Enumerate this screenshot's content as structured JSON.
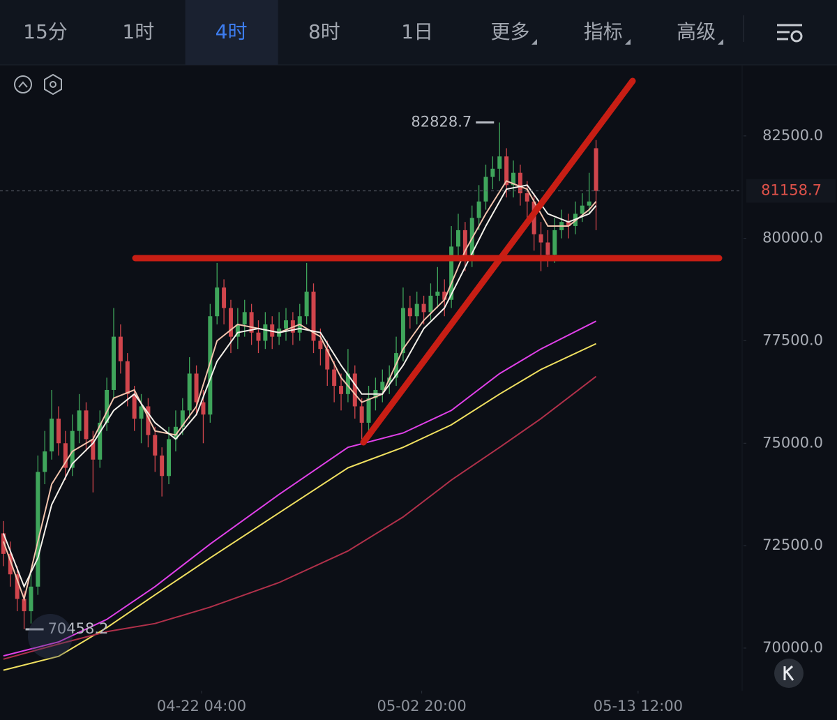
{
  "tabs": [
    "15分",
    "1时",
    "4时",
    "8时",
    "1日",
    "更多",
    "指标",
    "高级"
  ],
  "active_tab": 2,
  "chart_data": {
    "type": "candlestick",
    "open": [
      72800,
      72300,
      71800,
      71200,
      70900,
      71500,
      74300,
      74800,
      75600,
      75000,
      74400,
      75300,
      75800,
      75100,
      74600,
      75500,
      76300,
      77600,
      77000,
      76200,
      75600,
      75900,
      75200,
      74700,
      74200,
      75100,
      75400,
      75800,
      76700,
      76000,
      75700,
      78100,
      78800,
      78300,
      77600,
      77900,
      78200,
      77700,
      77500,
      77900,
      77600,
      77800,
      78000,
      77700,
      78100,
      78700,
      77500,
      77300,
      76800,
      76400,
      76200,
      76700,
      75900,
      75500,
      76100,
      76300,
      76500,
      76600,
      77200,
      78300,
      78100,
      78400,
      78200,
      78600,
      78700,
      78500,
      79800,
      80200,
      79500,
      80500,
      80900,
      81500,
      81700,
      82000,
      81300,
      81600,
      81100,
      80900,
      80100,
      79900,
      79600,
      80200,
      80400,
      80300,
      80600,
      80800,
      82200
    ],
    "high": [
      73100,
      72600,
      72000,
      71400,
      71800,
      74700,
      75300,
      76300,
      75900,
      75300,
      75700,
      76200,
      76000,
      75300,
      75800,
      76600,
      78300,
      77900,
      77200,
      76400,
      76200,
      76100,
      75400,
      74900,
      75400,
      75800,
      76100,
      77100,
      76900,
      76300,
      78400,
      79400,
      79000,
      78500,
      78300,
      78500,
      78400,
      78000,
      78200,
      78100,
      78200,
      78300,
      78200,
      78400,
      79400,
      78900,
      77800,
      77500,
      77000,
      76700,
      77300,
      76900,
      76100,
      76400,
      76600,
      76800,
      76900,
      77600,
      78800,
      78600,
      78700,
      78600,
      78900,
      79300,
      79000,
      80300,
      80600,
      80400,
      80800,
      81300,
      81800,
      82000,
      82828.7,
      82200,
      81900,
      81800,
      81400,
      81100,
      80400,
      80200,
      80500,
      80700,
      80600,
      80900,
      81100,
      81600,
      82400
    ],
    "low": [
      72000,
      71500,
      70900,
      70458.2,
      70600,
      71300,
      74000,
      74600,
      74700,
      74100,
      74200,
      75000,
      74800,
      73800,
      74400,
      75300,
      76100,
      76700,
      75900,
      75300,
      75000,
      74900,
      74300,
      73700,
      74000,
      74800,
      75200,
      75600,
      75700,
      75000,
      75500,
      77900,
      77900,
      77200,
      77300,
      77600,
      77400,
      77200,
      77300,
      77300,
      77400,
      77500,
      77400,
      77500,
      77900,
      77200,
      76900,
      76400,
      76000,
      75800,
      76000,
      75600,
      75100,
      75300,
      75800,
      76000,
      76200,
      76400,
      77000,
      77800,
      77900,
      77900,
      78000,
      78300,
      78100,
      78300,
      79500,
      79200,
      79300,
      80200,
      80700,
      81200,
      81400,
      81000,
      81000,
      80800,
      80500,
      79700,
      79200,
      79300,
      79400,
      80000,
      80000,
      80100,
      80400,
      80600,
      80200
    ],
    "close": [
      72300,
      71800,
      71200,
      70900,
      71500,
      74300,
      74800,
      75600,
      75000,
      74400,
      75300,
      75800,
      75100,
      74600,
      75500,
      76300,
      77600,
      77000,
      76200,
      75600,
      75900,
      75200,
      74700,
      74200,
      75100,
      75400,
      75800,
      76700,
      76000,
      75700,
      78100,
      78800,
      78300,
      77600,
      77900,
      78200,
      77700,
      77500,
      77900,
      77600,
      77800,
      78000,
      77700,
      78100,
      78700,
      77500,
      77300,
      76800,
      76400,
      76200,
      76700,
      75900,
      75500,
      76100,
      76300,
      76500,
      76600,
      77200,
      78300,
      78100,
      78400,
      78200,
      78600,
      78700,
      78500,
      79800,
      80200,
      79500,
      80500,
      80900,
      81500,
      81700,
      82000,
      81300,
      81600,
      81100,
      80900,
      80100,
      79900,
      79600,
      80200,
      80400,
      80300,
      80600,
      80800,
      80900,
      81158.7
    ],
    "up_color": "#3fa55b",
    "down_color": "#d0454c",
    "ma": [
      {
        "color": "#f2c4ad",
        "x": [
          0,
          3,
          5,
          7,
          10,
          13,
          16,
          19,
          22,
          25,
          28,
          31,
          34,
          37,
          40,
          43,
          46,
          49,
          52,
          55,
          58,
          61,
          64,
          67,
          70,
          73,
          76,
          79,
          82,
          85,
          86
        ],
        "values": [
          72600,
          71200,
          72600,
          74000,
          74800,
          75100,
          76100,
          76300,
          75300,
          75200,
          75900,
          77500,
          77900,
          77800,
          77700,
          77900,
          77600,
          76600,
          76000,
          76200,
          77300,
          78000,
          78500,
          79700,
          80600,
          81400,
          81200,
          80300,
          80300,
          80700,
          80900
        ]
      },
      {
        "color": "#f4f1ea",
        "x": [
          0,
          3,
          5,
          7,
          10,
          13,
          16,
          19,
          22,
          25,
          28,
          31,
          34,
          37,
          40,
          43,
          46,
          49,
          52,
          55,
          58,
          61,
          64,
          67,
          70,
          73,
          76,
          79,
          82,
          85,
          86
        ],
        "values": [
          72800,
          71500,
          72200,
          73500,
          74500,
          75000,
          75800,
          76200,
          75500,
          75100,
          75700,
          77000,
          77700,
          77800,
          77700,
          77800,
          77700,
          76900,
          76200,
          76200,
          76900,
          77800,
          78300,
          79300,
          80300,
          81200,
          81300,
          80600,
          80400,
          80600,
          80800
        ]
      },
      {
        "color": "#e040e8",
        "x": [
          0,
          8,
          15,
          22,
          30,
          40,
          50,
          58,
          65,
          72,
          78,
          86
        ],
        "values": [
          69810,
          70150,
          70700,
          71500,
          72540,
          73750,
          74900,
          75250,
          75800,
          76700,
          77300,
          77980
        ]
      },
      {
        "color": "#f0e060",
        "x": [
          0,
          8,
          15,
          22,
          30,
          40,
          50,
          58,
          65,
          72,
          78,
          86
        ],
        "values": [
          69460,
          69800,
          70500,
          71300,
          72200,
          73300,
          74400,
          74900,
          75450,
          76200,
          76800,
          77430
        ]
      },
      {
        "color": "#b0304a",
        "x": [
          0,
          8,
          15,
          22,
          30,
          40,
          50,
          58,
          65,
          72,
          78,
          86
        ],
        "values": [
          69730,
          70100,
          70400,
          70600,
          71000,
          71600,
          72370,
          73200,
          74100,
          74900,
          75600,
          76630
        ]
      }
    ],
    "ylim": [
      68960,
      84200
    ],
    "yticks": [
      {
        "value": 70000,
        "label": "70000.0"
      },
      {
        "value": 72500,
        "label": "72500.0"
      },
      {
        "value": 75000,
        "label": "75000.0"
      },
      {
        "value": 77500,
        "label": "77500.0"
      },
      {
        "value": 80000,
        "label": "80000.0"
      },
      {
        "value": 82500,
        "label": "82500.0"
      }
    ],
    "xlim": [
      -0.5,
      107.3
    ],
    "xticks": [
      {
        "value": 28.75,
        "label": "04-22 04:00"
      },
      {
        "value": 60.7,
        "label": "05-02 20:00"
      },
      {
        "value": 92.1,
        "label": "05-13 12:00"
      }
    ]
  }
}
